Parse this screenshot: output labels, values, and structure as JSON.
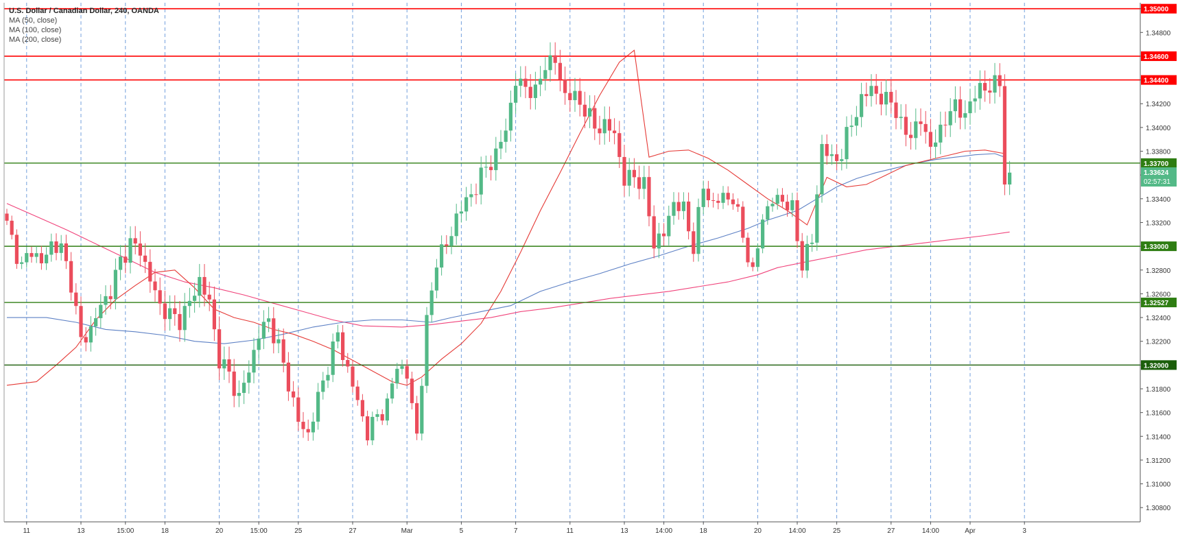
{
  "legend": {
    "title": "U.S. Dollar / Canadian Dollar, 240, OANDA",
    "indicators": [
      "MA (50, close)",
      "MA (100, close)",
      "MA (200, close)"
    ]
  },
  "colors": {
    "up": "#53b987",
    "down": "#eb4d5c",
    "resistance": "#ff0000",
    "support": "#2e7d12",
    "support_dark": "#1b5e0a",
    "ma50": "#e53935",
    "ma100": "#5b7fc4",
    "ma200": "#f0427a",
    "grid": "#5b8fd6",
    "axis_text": "#333333"
  },
  "chart_data": {
    "type": "candlestick",
    "symbol": "USD/CAD",
    "timeframe": "240",
    "source": "OANDA",
    "ylim": [
      1.3068,
      1.3505
    ],
    "y_ticks": [
      "1.30800",
      "1.31000",
      "1.31200",
      "1.31400",
      "1.31600",
      "1.31800",
      "1.32000",
      "1.32200",
      "1.32400",
      "1.32600",
      "1.32800",
      "1.33000",
      "1.33200",
      "1.33400",
      "1.33600",
      "1.33800",
      "1.34000",
      "1.34200",
      "1.34400",
      "1.34600",
      "1.34800",
      "1.35000"
    ],
    "x_ticks": [
      {
        "label": "11",
        "i": 4
      },
      {
        "label": "13",
        "i": 15
      },
      {
        "label": "15:00",
        "i": 24
      },
      {
        "label": "18",
        "i": 32
      },
      {
        "label": "20",
        "i": 43
      },
      {
        "label": "15:00",
        "i": 51
      },
      {
        "label": "25",
        "i": 59
      },
      {
        "label": "27",
        "i": 70
      },
      {
        "label": "Mar",
        "i": 81
      },
      {
        "label": "5",
        "i": 92
      },
      {
        "label": "7",
        "i": 103
      },
      {
        "label": "11",
        "i": 114
      },
      {
        "label": "13",
        "i": 125
      },
      {
        "label": "14:00",
        "i": 133
      },
      {
        "label": "18",
        "i": 141
      },
      {
        "label": "20",
        "i": 152
      },
      {
        "label": "14:00",
        "i": 160
      },
      {
        "label": "25",
        "i": 168
      },
      {
        "label": "27",
        "i": 179
      },
      {
        "label": "14:00",
        "i": 187
      },
      {
        "label": "Apr",
        "i": 195
      },
      {
        "label": "3",
        "i": 206
      }
    ],
    "levels": [
      {
        "value": 1.35,
        "label": "1.35000",
        "kind": "resistance"
      },
      {
        "value": 1.346,
        "label": "1.34600",
        "kind": "resistance"
      },
      {
        "value": 1.344,
        "label": "1.34400",
        "kind": "resistance"
      },
      {
        "value": 1.337,
        "label": "1.33700",
        "kind": "support"
      },
      {
        "value": 1.33,
        "label": "1.33000",
        "kind": "support"
      },
      {
        "value": 1.32527,
        "label": "1.32527",
        "kind": "support"
      },
      {
        "value": 1.32,
        "label": "1.32000",
        "kind": "support_dark"
      }
    ],
    "last_price": {
      "value": 1.33624,
      "label": "1.33624",
      "countdown": "02:57:31"
    },
    "anchors": [
      [
        0,
        1.3318
      ],
      [
        3,
        1.3282
      ],
      [
        5,
        1.3298
      ],
      [
        7,
        1.3285
      ],
      [
        9,
        1.3302
      ],
      [
        11,
        1.3298
      ],
      [
        13,
        1.327
      ],
      [
        15,
        1.322
      ],
      [
        17,
        1.323
      ],
      [
        19,
        1.325
      ],
      [
        21,
        1.3262
      ],
      [
        23,
        1.3288
      ],
      [
        25,
        1.3302
      ],
      [
        27,
        1.3297
      ],
      [
        29,
        1.3272
      ],
      [
        31,
        1.325
      ],
      [
        33,
        1.3242
      ],
      [
        35,
        1.3238
      ],
      [
        37,
        1.3252
      ],
      [
        39,
        1.3272
      ],
      [
        41,
        1.3252
      ],
      [
        43,
        1.3205
      ],
      [
        45,
        1.3192
      ],
      [
        47,
        1.3172
      ],
      [
        49,
        1.3196
      ],
      [
        51,
        1.3226
      ],
      [
        53,
        1.3238
      ],
      [
        55,
        1.3215
      ],
      [
        57,
        1.3185
      ],
      [
        59,
        1.3152
      ],
      [
        61,
        1.3142
      ],
      [
        63,
        1.3172
      ],
      [
        65,
        1.32
      ],
      [
        67,
        1.3226
      ],
      [
        69,
        1.3195
      ],
      [
        71,
        1.317
      ],
      [
        73,
        1.3142
      ],
      [
        75,
        1.3158
      ],
      [
        77,
        1.3165
      ],
      [
        79,
        1.3202
      ],
      [
        81,
        1.319
      ],
      [
        83,
        1.3142
      ],
      [
        85,
        1.3235
      ],
      [
        87,
        1.329
      ],
      [
        89,
        1.33
      ],
      [
        91,
        1.3325
      ],
      [
        93,
        1.3338
      ],
      [
        95,
        1.335
      ],
      [
        97,
        1.3367
      ],
      [
        99,
        1.3376
      ],
      [
        101,
        1.34
      ],
      [
        103,
        1.3438
      ],
      [
        105,
        1.3435
      ],
      [
        107,
        1.3428
      ],
      [
        109,
        1.3455
      ],
      [
        111,
        1.3455
      ],
      [
        113,
        1.3428
      ],
      [
        115,
        1.3425
      ],
      [
        117,
        1.3416
      ],
      [
        119,
        1.34
      ],
      [
        121,
        1.3402
      ],
      [
        123,
        1.3395
      ],
      [
        125,
        1.3355
      ],
      [
        127,
        1.336
      ],
      [
        129,
        1.335
      ],
      [
        131,
        1.3303
      ],
      [
        133,
        1.331
      ],
      [
        135,
        1.3338
      ],
      [
        137,
        1.333
      ],
      [
        139,
        1.33
      ],
      [
        141,
        1.335
      ],
      [
        143,
        1.3335
      ],
      [
        145,
        1.3342
      ],
      [
        147,
        1.334
      ],
      [
        149,
        1.331
      ],
      [
        151,
        1.3275
      ],
      [
        153,
        1.3325
      ],
      [
        155,
        1.3338
      ],
      [
        157,
        1.334
      ],
      [
        159,
        1.333
      ],
      [
        161,
        1.3285
      ],
      [
        163,
        1.3305
      ],
      [
        165,
        1.3385
      ],
      [
        167,
        1.3372
      ],
      [
        169,
        1.3378
      ],
      [
        171,
        1.3405
      ],
      [
        173,
        1.3422
      ],
      [
        175,
        1.3435
      ],
      [
        177,
        1.3422
      ],
      [
        179,
        1.3425
      ],
      [
        181,
        1.34
      ],
      [
        183,
        1.3395
      ],
      [
        185,
        1.3405
      ],
      [
        187,
        1.3385
      ],
      [
        189,
        1.3395
      ],
      [
        191,
        1.3418
      ],
      [
        193,
        1.3412
      ],
      [
        195,
        1.3418
      ],
      [
        197,
        1.3435
      ],
      [
        199,
        1.3432
      ],
      [
        201,
        1.344
      ],
      [
        202,
        1.3352
      ],
      [
        203,
        1.3362
      ]
    ],
    "ma50": [
      [
        0,
        1.3183
      ],
      [
        6,
        1.3186
      ],
      [
        10,
        1.32
      ],
      [
        14,
        1.3215
      ],
      [
        18,
        1.3238
      ],
      [
        22,
        1.3255
      ],
      [
        26,
        1.3267
      ],
      [
        30,
        1.3278
      ],
      [
        34,
        1.328
      ],
      [
        38,
        1.3265
      ],
      [
        42,
        1.3247
      ],
      [
        46,
        1.324
      ],
      [
        50,
        1.3236
      ],
      [
        54,
        1.323
      ],
      [
        58,
        1.3226
      ],
      [
        62,
        1.322
      ],
      [
        66,
        1.3213
      ],
      [
        70,
        1.3204
      ],
      [
        74,
        1.3195
      ],
      [
        78,
        1.3186
      ],
      [
        81,
        1.3183
      ],
      [
        84,
        1.319
      ],
      [
        88,
        1.3205
      ],
      [
        92,
        1.3218
      ],
      [
        96,
        1.3235
      ],
      [
        100,
        1.3262
      ],
      [
        104,
        1.3295
      ],
      [
        108,
        1.333
      ],
      [
        112,
        1.3362
      ],
      [
        116,
        1.3395
      ],
      [
        120,
        1.3427
      ],
      [
        124,
        1.3455
      ],
      [
        127,
        1.3465
      ],
      [
        130,
        1.3375
      ],
      [
        134,
        1.338
      ],
      [
        138,
        1.3381
      ],
      [
        142,
        1.3374
      ],
      [
        146,
        1.3364
      ],
      [
        150,
        1.3352
      ],
      [
        154,
        1.334
      ],
      [
        158,
        1.333
      ],
      [
        162,
        1.3318
      ],
      [
        166,
        1.3358
      ],
      [
        170,
        1.335
      ],
      [
        174,
        1.3352
      ],
      [
        178,
        1.336
      ],
      [
        182,
        1.3368
      ],
      [
        186,
        1.3372
      ],
      [
        190,
        1.3376
      ],
      [
        194,
        1.338
      ],
      [
        198,
        1.3381
      ],
      [
        202,
        1.3378
      ]
    ],
    "ma100": [
      [
        0,
        1.324
      ],
      [
        8,
        1.324
      ],
      [
        14,
        1.3236
      ],
      [
        20,
        1.323
      ],
      [
        26,
        1.3228
      ],
      [
        32,
        1.3225
      ],
      [
        38,
        1.322
      ],
      [
        44,
        1.3218
      ],
      [
        50,
        1.3221
      ],
      [
        56,
        1.3226
      ],
      [
        62,
        1.3232
      ],
      [
        68,
        1.3236
      ],
      [
        74,
        1.3238
      ],
      [
        80,
        1.3238
      ],
      [
        86,
        1.3236
      ],
      [
        90,
        1.324
      ],
      [
        96,
        1.3245
      ],
      [
        102,
        1.325
      ],
      [
        108,
        1.3262
      ],
      [
        114,
        1.327
      ],
      [
        120,
        1.3277
      ],
      [
        126,
        1.3285
      ],
      [
        132,
        1.3292
      ],
      [
        138,
        1.33
      ],
      [
        144,
        1.3307
      ],
      [
        150,
        1.3315
      ],
      [
        154,
        1.3322
      ],
      [
        160,
        1.333
      ],
      [
        164,
        1.334
      ],
      [
        168,
        1.335
      ],
      [
        172,
        1.3357
      ],
      [
        176,
        1.3362
      ],
      [
        180,
        1.3366
      ],
      [
        184,
        1.337
      ],
      [
        188,
        1.3373
      ],
      [
        192,
        1.3375
      ],
      [
        196,
        1.3377
      ],
      [
        200,
        1.3378
      ],
      [
        202,
        1.3375
      ]
    ],
    "ma200": [
      [
        0,
        1.3336
      ],
      [
        6,
        1.3325
      ],
      [
        12,
        1.3314
      ],
      [
        18,
        1.3302
      ],
      [
        24,
        1.329
      ],
      [
        30,
        1.3278
      ],
      [
        36,
        1.327
      ],
      [
        42,
        1.3265
      ],
      [
        48,
        1.3259
      ],
      [
        54,
        1.3252
      ],
      [
        60,
        1.3245
      ],
      [
        66,
        1.3238
      ],
      [
        72,
        1.3233
      ],
      [
        80,
        1.3232
      ],
      [
        86,
        1.3234
      ],
      [
        92,
        1.3237
      ],
      [
        98,
        1.324
      ],
      [
        104,
        1.3245
      ],
      [
        110,
        1.3248
      ],
      [
        116,
        1.3252
      ],
      [
        122,
        1.3256
      ],
      [
        128,
        1.3259
      ],
      [
        134,
        1.3262
      ],
      [
        140,
        1.3266
      ],
      [
        146,
        1.327
      ],
      [
        152,
        1.3276
      ],
      [
        156,
        1.3282
      ],
      [
        162,
        1.3287
      ],
      [
        168,
        1.3292
      ],
      [
        174,
        1.3297
      ],
      [
        180,
        1.33
      ],
      [
        186,
        1.3303
      ],
      [
        192,
        1.3306
      ],
      [
        198,
        1.3309
      ],
      [
        203,
        1.3312
      ]
    ]
  }
}
